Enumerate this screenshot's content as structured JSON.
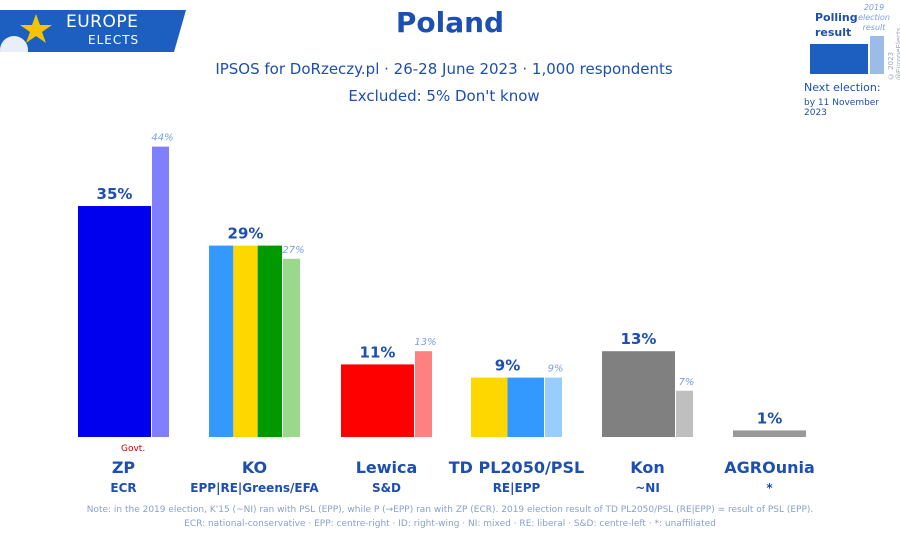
{
  "header": {
    "logo_line1": "EUROPE",
    "logo_line2": "ELECTS",
    "title": "Poland",
    "subtitle": "IPSOS for DoRzeczy.pl · 26-28 June 2023 · 1,000 respondents",
    "excluded": "Excluded: 5% Don't know"
  },
  "legend": {
    "polling_result": "Polling result",
    "election_result": "2019 election result",
    "copyright": "© 2023 @EuropeElects",
    "next_election_label": "Next election:",
    "next_election_date": "by 11 November 2023"
  },
  "govt_label": "Govt.",
  "notes": {
    "line1": "Note: in the 2019 election, K'15 (~NI) ran with PSL (EPP), while P (→EPP) ran with ZP (ECR). 2019 election result of TD PL2050/PSL (RE|EPP) = result of PSL (EPP).",
    "line2": "ECR: national-conservative · EPP: centre-right · ID: right-wing · NI: mixed · RE: liberal · S&D: centre-left · *: unaffiliated"
  },
  "colors": {
    "brand": "#1d4fb0",
    "logo_bg": "#1d5fc0",
    "star": "#f5c400"
  },
  "chart_data": {
    "type": "bar",
    "ylim": [
      0,
      50
    ],
    "categories": [
      "ZP",
      "KO",
      "Lewica",
      "TD PL2050/PSL",
      "Kon",
      "AGROunia"
    ],
    "groups": [
      "ECR",
      "EPP|RE|Greens/EFA",
      "S&D",
      "RE|EPP",
      "~NI",
      "*"
    ],
    "series": [
      {
        "name": "Polling result",
        "values": [
          35,
          29,
          11,
          9,
          13,
          1
        ]
      },
      {
        "name": "2019 election result",
        "values": [
          44,
          27,
          13,
          9,
          7,
          null
        ]
      }
    ],
    "value_labels": [
      "35%",
      "29%",
      "11%",
      "9%",
      "13%",
      "1%"
    ],
    "election_labels": [
      "44%",
      "27%",
      "13%",
      "9%",
      "7%",
      ""
    ],
    "poll_colors": [
      [
        "#0000ee"
      ],
      [
        "#3399ff",
        "#ffd700",
        "#009900"
      ],
      [
        "#ff0000"
      ],
      [
        "#ffd700",
        "#3399ff"
      ],
      [
        "#808080"
      ],
      [
        "#999999"
      ]
    ],
    "election_colors": [
      "#8080ff",
      "#99d98c",
      "#ff8080",
      "#99ccff",
      "#bfbfbf",
      "#cccccc"
    ]
  }
}
